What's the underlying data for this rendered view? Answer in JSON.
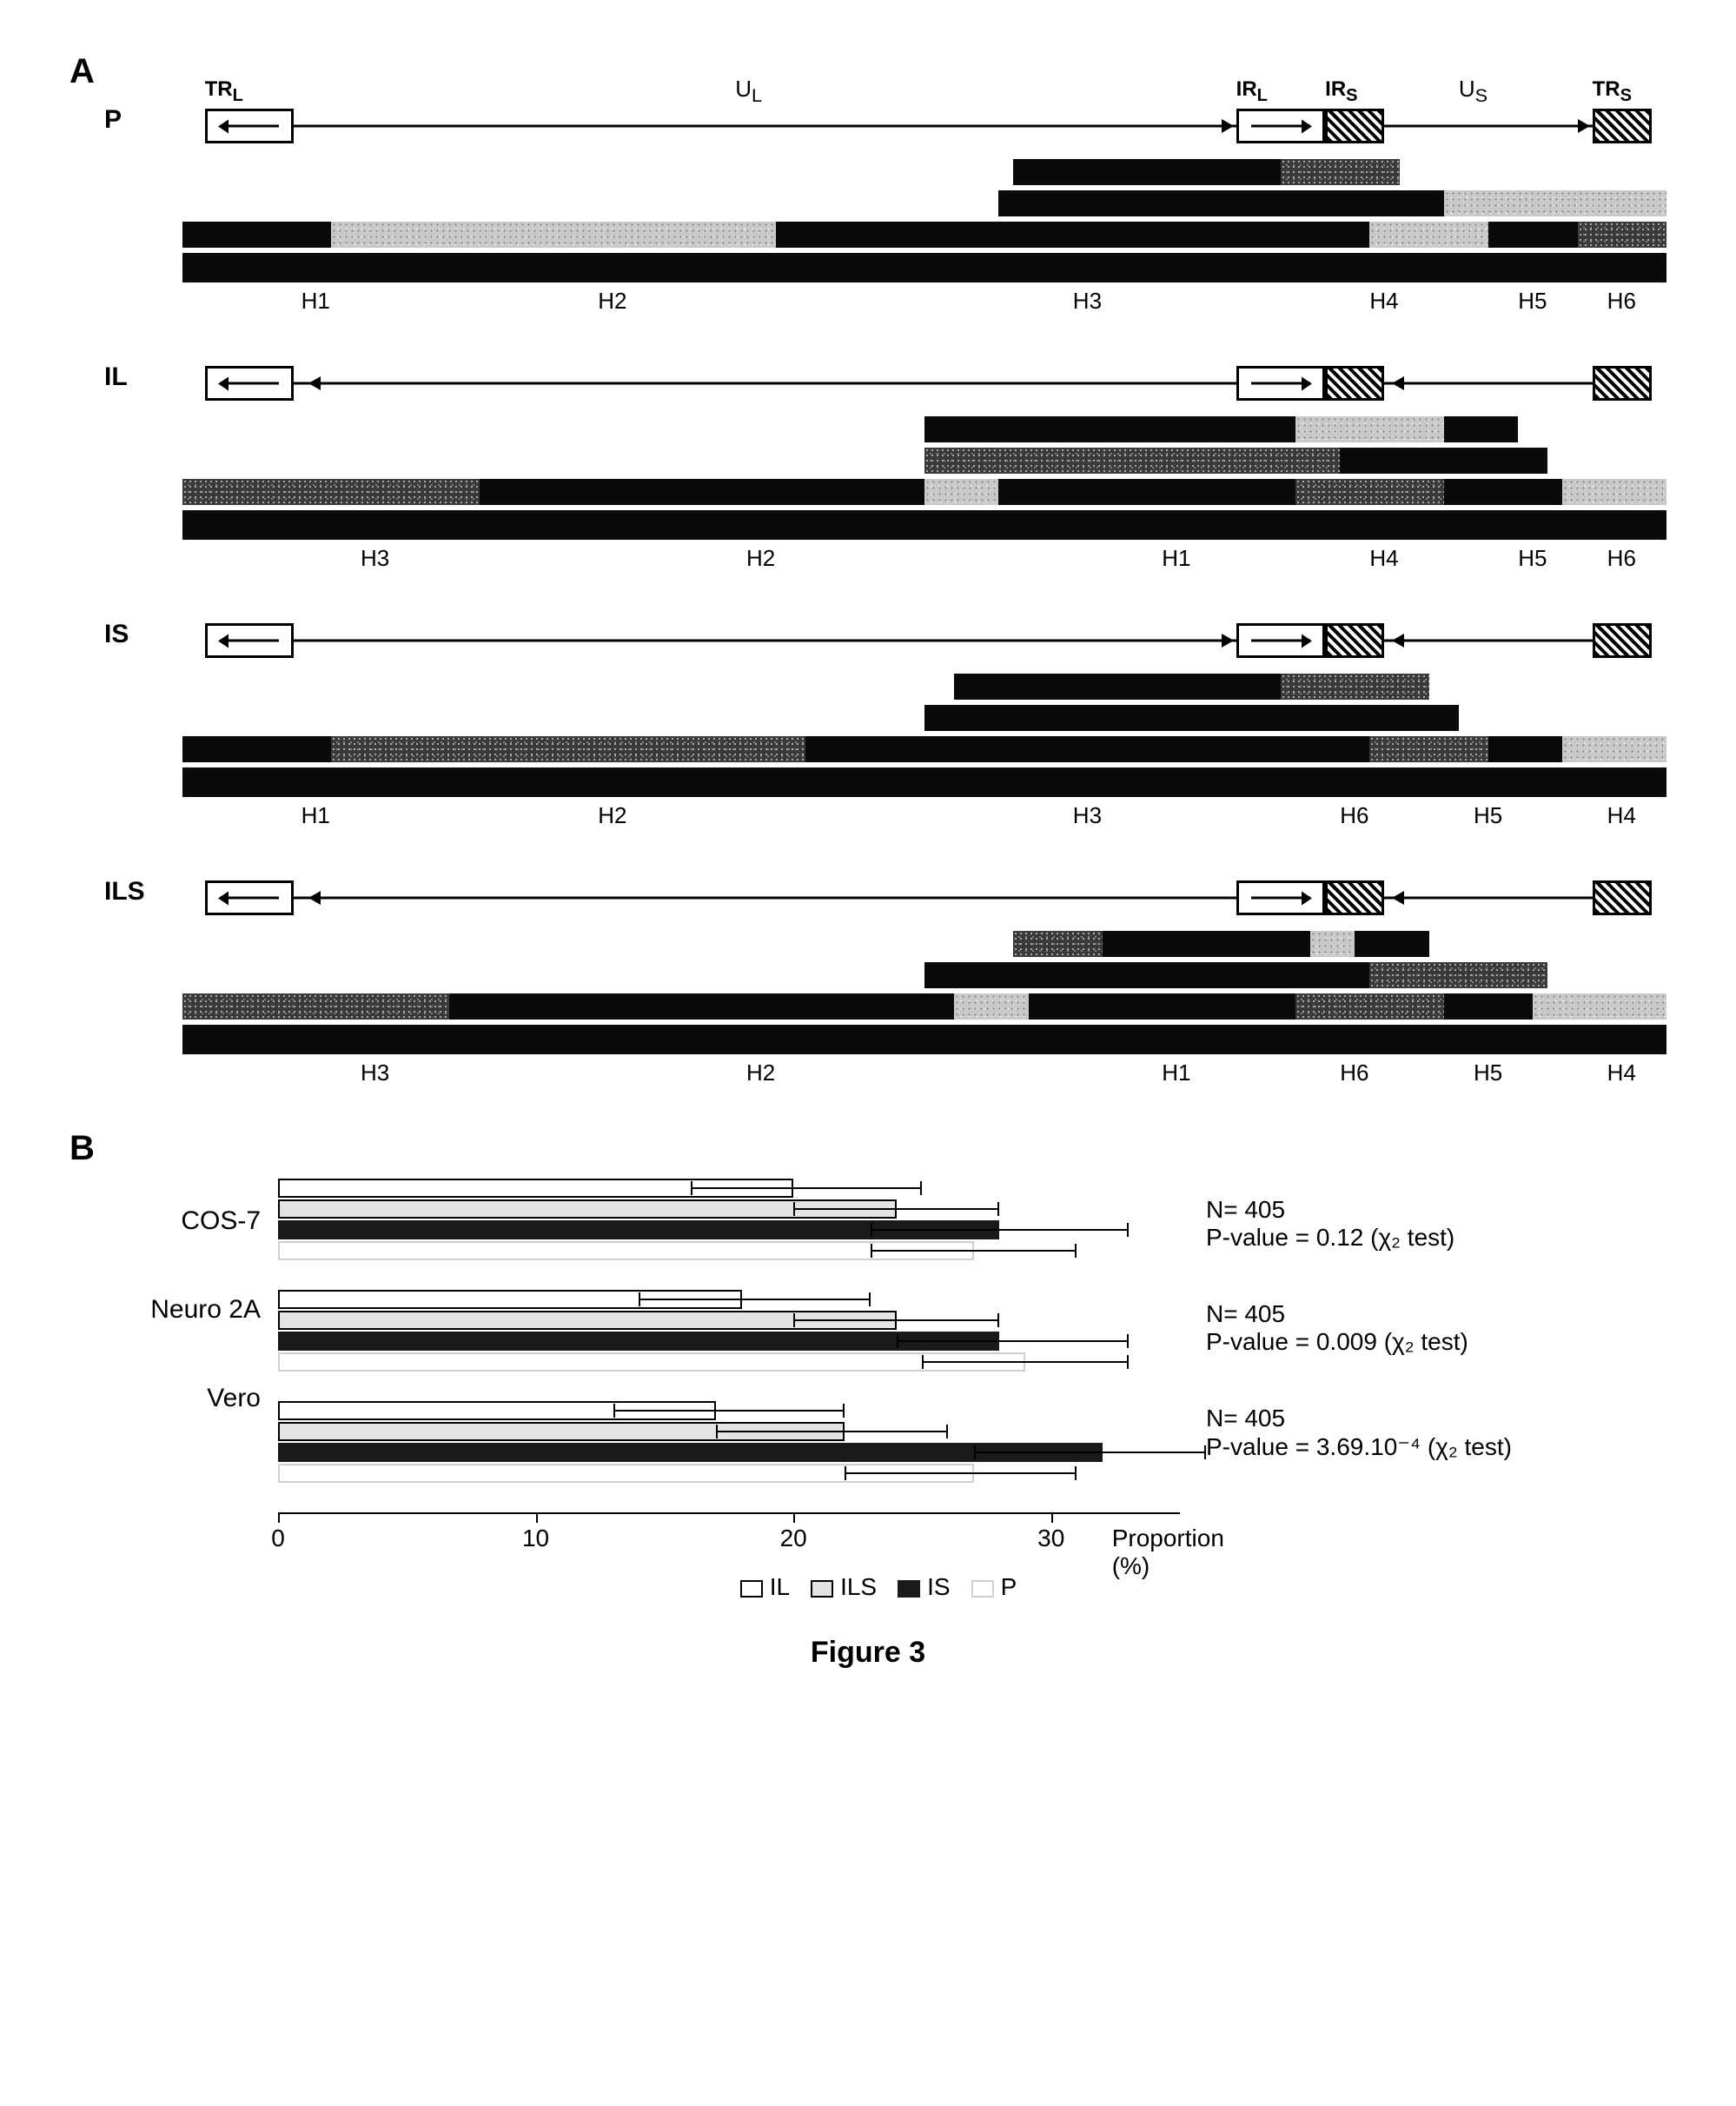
{
  "figure_label": "Figure 3",
  "panelA": {
    "label": "A",
    "top_labels": {
      "TR_L": "TR",
      "TR_L_sub": "L",
      "U_L": "U",
      "U_L_sub": "L",
      "IR_L": "IR",
      "IR_L_sub": "L",
      "IR_S": "IR",
      "IR_S_sub": "S",
      "U_S": "U",
      "U_S_sub": "S",
      "TR_S": "TR",
      "TR_S_sub": "S"
    },
    "schematic_geom": {
      "width_pct": 100,
      "TR_L": {
        "x": 1.5,
        "w": 6
      },
      "UL_line": {
        "x1": 7.5,
        "x2": 71
      },
      "IR_L": {
        "x": 71,
        "w": 6
      },
      "IR_S": {
        "x": 77,
        "w": 4
      },
      "US_line": {
        "x1": 81,
        "x2": 95
      },
      "TR_S": {
        "x": 95,
        "w": 4
      }
    },
    "genomes": [
      {
        "name": "P",
        "show_top_labels": true,
        "ul_arrow": "right",
        "us_arrow": "right",
        "gels": [
          [
            {
              "style": "black",
              "x": 56,
              "w": 18
            },
            {
              "style": "grayn",
              "x": 74,
              "w": 8
            }
          ],
          [
            {
              "style": "black",
              "x": 55,
              "w": 30
            },
            {
              "style": "lightn",
              "x": 85,
              "w": 15
            }
          ],
          [
            {
              "style": "black",
              "x": 0,
              "w": 10
            },
            {
              "style": "lightn",
              "x": 10,
              "w": 30
            },
            {
              "style": "black",
              "x": 40,
              "w": 40
            },
            {
              "style": "lightn",
              "x": 80,
              "w": 8
            },
            {
              "style": "black",
              "x": 88,
              "w": 6
            },
            {
              "style": "grayn",
              "x": 94,
              "w": 6
            }
          ],
          [
            {
              "style": "black",
              "x": 0,
              "w": 100
            }
          ]
        ],
        "hlabels": [
          {
            "t": "H1",
            "x": 8
          },
          {
            "t": "H2",
            "x": 28
          },
          {
            "t": "H3",
            "x": 60
          },
          {
            "t": "H4",
            "x": 80
          },
          {
            "t": "H5",
            "x": 90
          },
          {
            "t": "H6",
            "x": 96
          }
        ]
      },
      {
        "name": "IL",
        "show_top_labels": false,
        "ul_arrow": "left",
        "us_arrow": "left_small",
        "gels": [
          [
            {
              "style": "black",
              "x": 50,
              "w": 25
            },
            {
              "style": "lightn",
              "x": 75,
              "w": 10
            },
            {
              "style": "black",
              "x": 85,
              "w": 5
            }
          ],
          [
            {
              "style": "grayn",
              "x": 50,
              "w": 28
            },
            {
              "style": "black",
              "x": 78,
              "w": 14
            }
          ],
          [
            {
              "style": "grayn",
              "x": 0,
              "w": 20
            },
            {
              "style": "black",
              "x": 20,
              "w": 30
            },
            {
              "style": "lightn",
              "x": 50,
              "w": 5
            },
            {
              "style": "black",
              "x": 55,
              "w": 20
            },
            {
              "style": "grayn",
              "x": 75,
              "w": 10
            },
            {
              "style": "black",
              "x": 85,
              "w": 8
            },
            {
              "style": "lightn",
              "x": 93,
              "w": 7
            }
          ],
          [
            {
              "style": "black",
              "x": 0,
              "w": 100
            }
          ]
        ],
        "hlabels": [
          {
            "t": "H3",
            "x": 12
          },
          {
            "t": "H2",
            "x": 38
          },
          {
            "t": "H1",
            "x": 66
          },
          {
            "t": "H4",
            "x": 80
          },
          {
            "t": "H5",
            "x": 90
          },
          {
            "t": "H6",
            "x": 96
          }
        ]
      },
      {
        "name": "IS",
        "show_top_labels": false,
        "ul_arrow": "none_right",
        "us_arrow": "left_small",
        "gels": [
          [
            {
              "style": "black",
              "x": 52,
              "w": 22
            },
            {
              "style": "grayn",
              "x": 74,
              "w": 10
            }
          ],
          [
            {
              "style": "black",
              "x": 50,
              "w": 36
            }
          ],
          [
            {
              "style": "black",
              "x": 0,
              "w": 10
            },
            {
              "style": "grayn",
              "x": 10,
              "w": 32
            },
            {
              "style": "black",
              "x": 42,
              "w": 38
            },
            {
              "style": "grayn",
              "x": 80,
              "w": 8
            },
            {
              "style": "black",
              "x": 88,
              "w": 5
            },
            {
              "style": "lightn",
              "x": 93,
              "w": 7
            }
          ],
          [
            {
              "style": "black",
              "x": 0,
              "w": 100
            }
          ]
        ],
        "hlabels": [
          {
            "t": "H1",
            "x": 8
          },
          {
            "t": "H2",
            "x": 28
          },
          {
            "t": "H3",
            "x": 60
          },
          {
            "t": "H6",
            "x": 78
          },
          {
            "t": "H5",
            "x": 87
          },
          {
            "t": "H4",
            "x": 96
          }
        ]
      },
      {
        "name": "ILS",
        "show_top_labels": false,
        "ul_arrow": "left",
        "us_arrow": "left_small",
        "gels": [
          [
            {
              "style": "grayn",
              "x": 56,
              "w": 6
            },
            {
              "style": "black",
              "x": 62,
              "w": 14
            },
            {
              "style": "lightn",
              "x": 76,
              "w": 3
            },
            {
              "style": "black",
              "x": 79,
              "w": 5
            }
          ],
          [
            {
              "style": "black",
              "x": 50,
              "w": 30
            },
            {
              "style": "grayn",
              "x": 80,
              "w": 12
            }
          ],
          [
            {
              "style": "grayn",
              "x": 0,
              "w": 18
            },
            {
              "style": "black",
              "x": 18,
              "w": 34
            },
            {
              "style": "lightn",
              "x": 52,
              "w": 5
            },
            {
              "style": "black",
              "x": 57,
              "w": 18
            },
            {
              "style": "grayn",
              "x": 75,
              "w": 10
            },
            {
              "style": "black",
              "x": 85,
              "w": 6
            },
            {
              "style": "lightn",
              "x": 91,
              "w": 9
            }
          ],
          [
            {
              "style": "black",
              "x": 0,
              "w": 100
            }
          ]
        ],
        "hlabels": [
          {
            "t": "H3",
            "x": 12
          },
          {
            "t": "H2",
            "x": 38
          },
          {
            "t": "H1",
            "x": 66
          },
          {
            "t": "H6",
            "x": 78
          },
          {
            "t": "H5",
            "x": 87
          },
          {
            "t": "H4",
            "x": 96
          }
        ]
      }
    ]
  },
  "panelB": {
    "label": "B",
    "xlabel": "Proportion (%)",
    "xlim": [
      0,
      35
    ],
    "xticks": [
      0,
      10,
      20,
      30
    ],
    "series_order": [
      "IL",
      "ILS",
      "IS",
      "P"
    ],
    "series_fill": {
      "IL": "fill-IL",
      "ILS": "fill-ILS",
      "IS": "fill-IS",
      "P": "fill-P"
    },
    "legend": [
      "IL",
      "ILS",
      "IS",
      "P"
    ],
    "groups": [
      {
        "name": "COS-7",
        "bars": {
          "IL": {
            "v": 20,
            "lo": 16,
            "hi": 25
          },
          "ILS": {
            "v": 24,
            "lo": 20,
            "hi": 28
          },
          "IS": {
            "v": 28,
            "lo": 23,
            "hi": 33
          },
          "P": {
            "v": 27,
            "lo": 23,
            "hi": 31
          }
        },
        "stats": {
          "N": "N= 405",
          "pval": "P-value = 0.12 (χ₂ test)"
        }
      },
      {
        "name": "Neuro 2A",
        "bars": {
          "IL": {
            "v": 18,
            "lo": 14,
            "hi": 23
          },
          "ILS": {
            "v": 24,
            "lo": 20,
            "hi": 28
          },
          "IS": {
            "v": 28,
            "lo": 24,
            "hi": 33
          },
          "P": {
            "v": 29,
            "lo": 25,
            "hi": 33
          }
        },
        "stats": {
          "N": "N= 405",
          "pval": "P-value = 0.009 (χ₂ test)"
        }
      },
      {
        "name": "Vero",
        "bars": {
          "IL": {
            "v": 17,
            "lo": 13,
            "hi": 22
          },
          "ILS": {
            "v": 22,
            "lo": 17,
            "hi": 26
          },
          "IS": {
            "v": 32,
            "lo": 27,
            "hi": 36
          },
          "P": {
            "v": 27,
            "lo": 22,
            "hi": 31
          }
        },
        "stats": {
          "N": "N= 405",
          "pval": "P-value = 3.69.10⁻⁴ (χ₂ test)"
        }
      }
    ]
  }
}
